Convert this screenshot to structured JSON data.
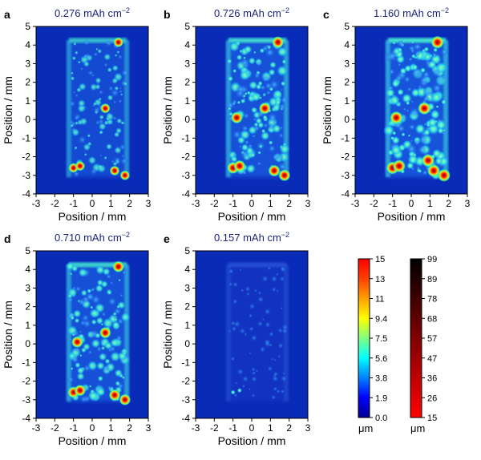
{
  "panels": [
    {
      "letter": "a",
      "title": "0.276 mAh cm",
      "title_sup": "−2",
      "intensity": 0.55,
      "speckle": "medium"
    },
    {
      "letter": "b",
      "title": "0.726 mAh cm",
      "title_sup": "−2",
      "intensity": 0.85,
      "speckle": "high"
    },
    {
      "letter": "c",
      "title": "1.160 mAh cm",
      "title_sup": "−2",
      "intensity": 1.0,
      "speckle": "very-high"
    },
    {
      "letter": "d",
      "title": "0.710 mAh cm",
      "title_sup": "−2",
      "intensity": 0.8,
      "speckle": "high"
    },
    {
      "letter": "e",
      "title": "0.157 mAh cm",
      "title_sup": "−2",
      "intensity": 0.25,
      "speckle": "low"
    }
  ],
  "axes": {
    "xlabel": "Position / mm",
    "ylabel": "Position / mm",
    "x_ticks": [
      "-3",
      "-2",
      "-1",
      "0",
      "1",
      "2",
      "3"
    ],
    "y_ticks": [
      "-4",
      "-3",
      "-2",
      "-1",
      "0",
      "1",
      "2",
      "3",
      "4",
      "5"
    ],
    "xlim": [
      -3,
      3
    ],
    "ylim": [
      -4,
      5
    ]
  },
  "colorbars": [
    {
      "name": "jet-scale",
      "ticks": [
        "15",
        "13",
        "11",
        "9.4",
        "7.5",
        "5.6",
        "3.8",
        "1.9",
        "0.0"
      ],
      "unit": "μm",
      "colors": [
        "#ff0000",
        "#ffaa00",
        "#ffff00",
        "#80ff80",
        "#00ffff",
        "#0080ff",
        "#0000ff",
        "#00008f"
      ]
    },
    {
      "name": "red-black-scale",
      "ticks": [
        "99",
        "89",
        "78",
        "68",
        "57",
        "47",
        "36",
        "26",
        "15"
      ],
      "unit": "μm",
      "colors": [
        "#000000",
        "#400000",
        "#800000",
        "#c00000",
        "#ff0000"
      ]
    }
  ],
  "colors": {
    "background": "#0a2ab8",
    "title": "#1a237e",
    "axis": "#000000"
  }
}
